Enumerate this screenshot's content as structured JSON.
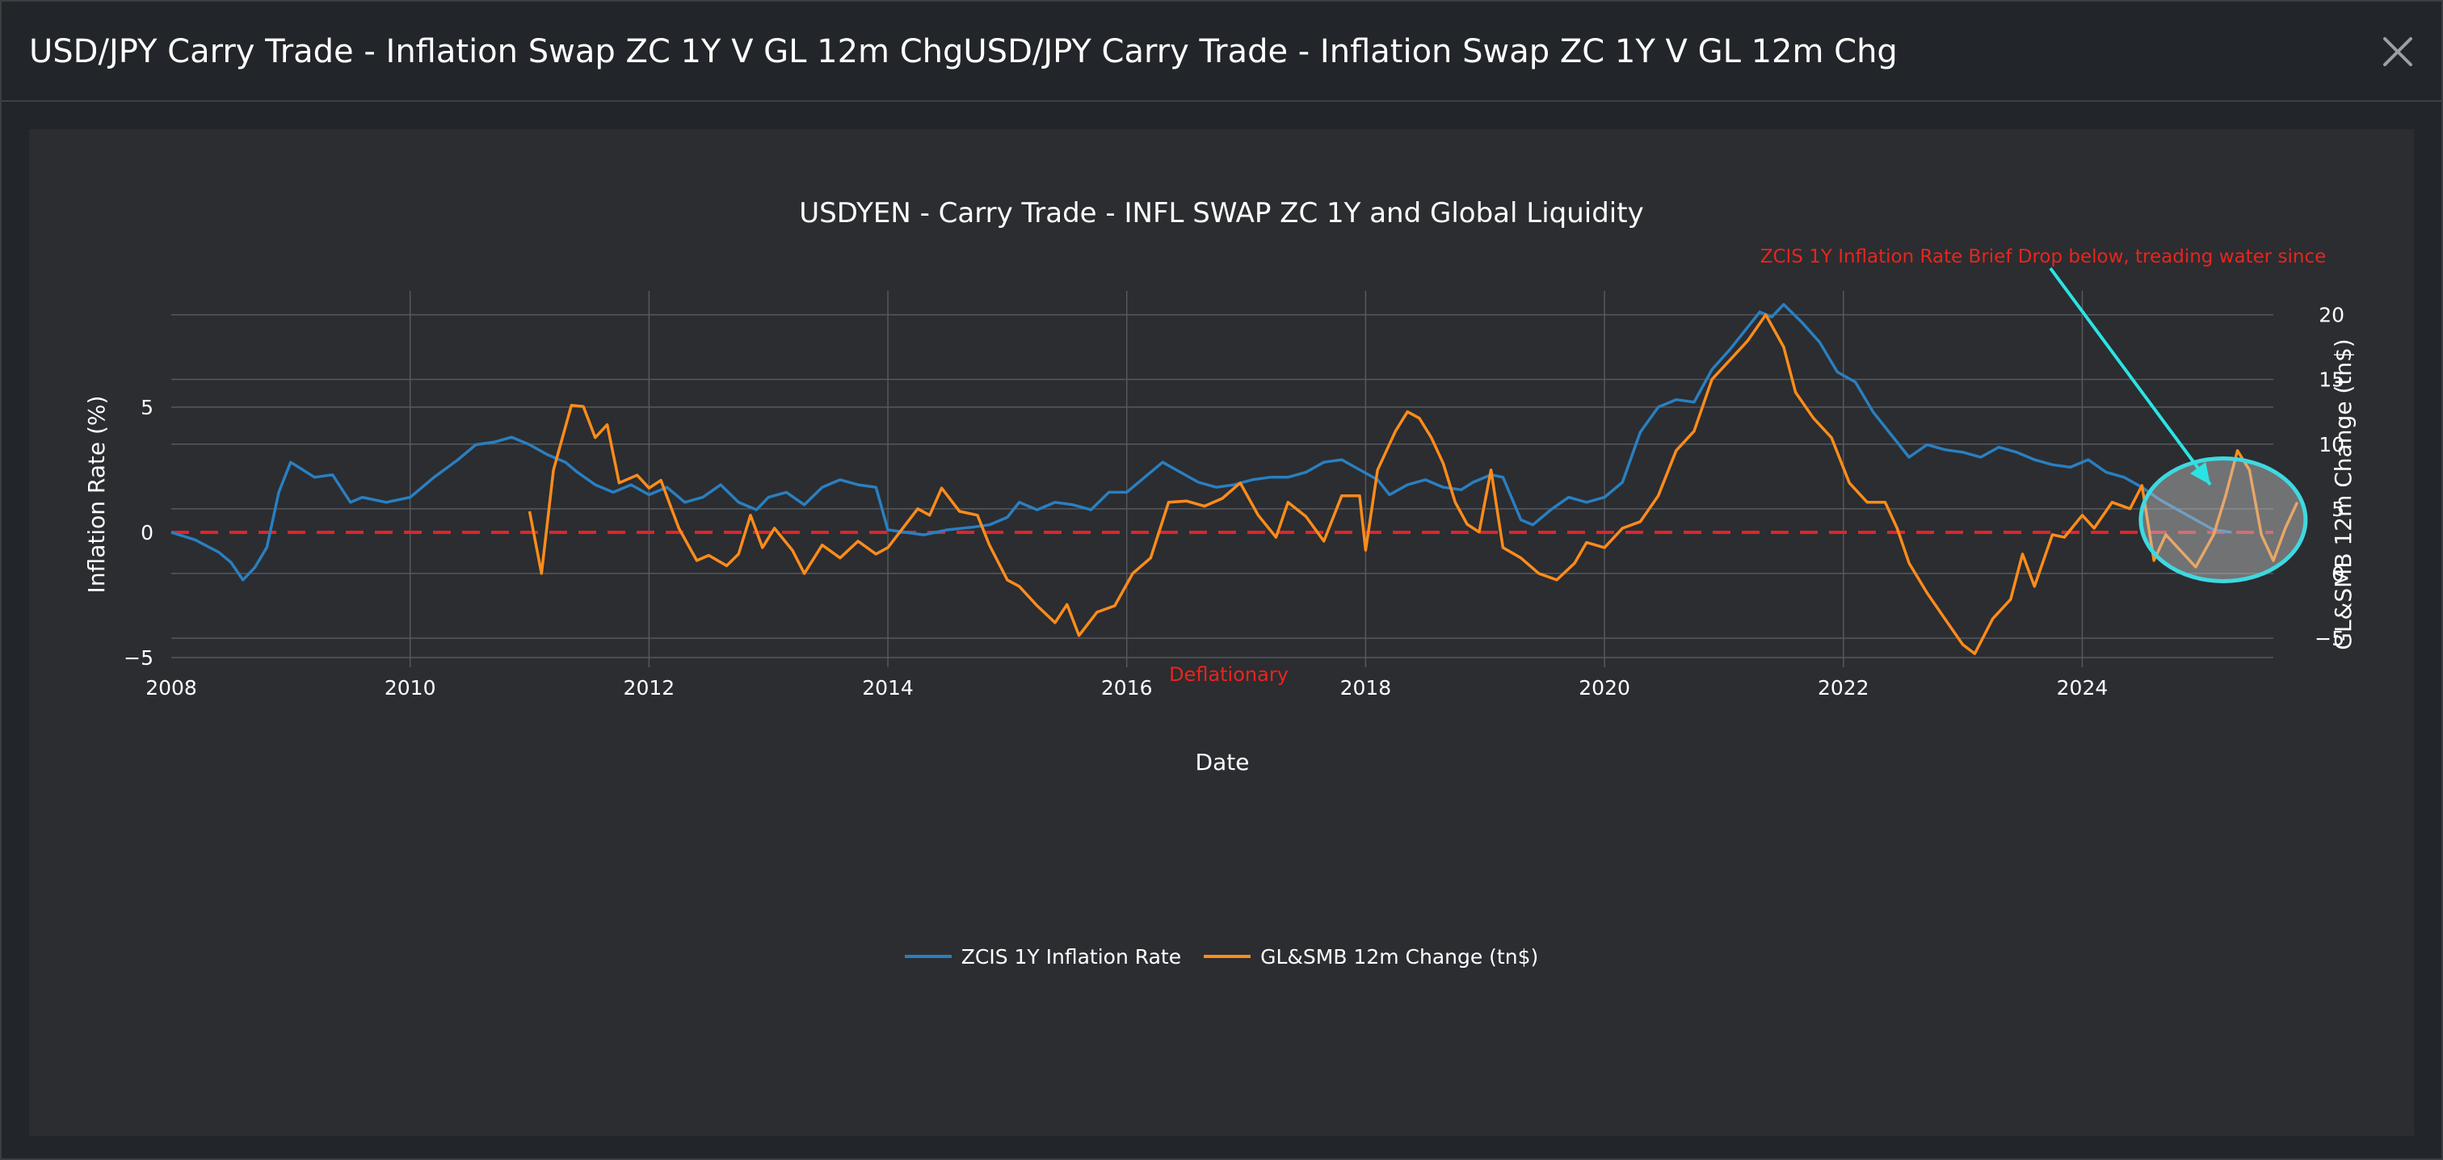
{
  "modal": {
    "title": "USD/JPY Carry Trade - Inflation Swap ZC 1Y V GL 12m ChgUSD/JPY Carry Trade - Inflation Swap ZC 1Y V GL 12m Chg",
    "close_icon": "close-icon"
  },
  "colors": {
    "series1": "#2a7fc0",
    "series2": "#ff8c1a",
    "zero_line": "#e0242b",
    "annotation_red": "#e8251d",
    "arrow": "#2ce3e3",
    "circle": "#3ed9e0"
  },
  "chart_data": {
    "type": "line",
    "title": "USDYEN - Carry Trade - INFL SWAP ZC 1Y and Global Liquidity",
    "xlabel": "Date",
    "ylabel": "Inflation Rate (%)",
    "y2label": "GL&SMB 12m Change (tn$)",
    "xlim": [
      2008,
      2025.6
    ],
    "ylim": [
      -5,
      9
    ],
    "y2lim": [
      -6.5,
      20.6
    ],
    "x_ticks": [
      "2008",
      "2010",
      "2012",
      "2014",
      "2016",
      "2018",
      "2020",
      "2022",
      "2024"
    ],
    "y_ticks": [
      "−5",
      "0",
      "5"
    ],
    "y2_ticks": [
      "−5",
      "0",
      "5",
      "10",
      "15",
      "20"
    ],
    "grid": true,
    "legend_position": "bottom-center",
    "zero_line": 0,
    "series": [
      {
        "name": "ZCIS 1Y Inflation Rate",
        "axis": "y",
        "points": [
          [
            2008.0,
            0.0
          ],
          [
            2008.2,
            -0.3
          ],
          [
            2008.4,
            -0.8
          ],
          [
            2008.5,
            -1.2
          ],
          [
            2008.6,
            -1.9
          ],
          [
            2008.7,
            -1.4
          ],
          [
            2008.8,
            -0.6
          ],
          [
            2008.9,
            1.6
          ],
          [
            2009.0,
            2.8
          ],
          [
            2009.1,
            2.5
          ],
          [
            2009.2,
            2.2
          ],
          [
            2009.35,
            2.3
          ],
          [
            2009.5,
            1.2
          ],
          [
            2009.6,
            1.4
          ],
          [
            2009.8,
            1.2
          ],
          [
            2010.0,
            1.4
          ],
          [
            2010.2,
            2.2
          ],
          [
            2010.4,
            2.9
          ],
          [
            2010.55,
            3.5
          ],
          [
            2010.7,
            3.6
          ],
          [
            2010.85,
            3.8
          ],
          [
            2011.0,
            3.5
          ],
          [
            2011.15,
            3.1
          ],
          [
            2011.3,
            2.8
          ],
          [
            2011.4,
            2.4
          ],
          [
            2011.55,
            1.9
          ],
          [
            2011.7,
            1.6
          ],
          [
            2011.85,
            1.9
          ],
          [
            2012.0,
            1.5
          ],
          [
            2012.15,
            1.8
          ],
          [
            2012.3,
            1.2
          ],
          [
            2012.45,
            1.4
          ],
          [
            2012.6,
            1.9
          ],
          [
            2012.75,
            1.2
          ],
          [
            2012.9,
            0.9
          ],
          [
            2013.0,
            1.4
          ],
          [
            2013.15,
            1.6
          ],
          [
            2013.3,
            1.1
          ],
          [
            2013.45,
            1.8
          ],
          [
            2013.6,
            2.1
          ],
          [
            2013.75,
            1.9
          ],
          [
            2013.9,
            1.8
          ],
          [
            2014.0,
            0.1
          ],
          [
            2014.15,
            0.0
          ],
          [
            2014.3,
            -0.1
          ],
          [
            2014.5,
            0.1
          ],
          [
            2014.7,
            0.2
          ],
          [
            2014.85,
            0.3
          ],
          [
            2015.0,
            0.6
          ],
          [
            2015.1,
            1.2
          ],
          [
            2015.25,
            0.9
          ],
          [
            2015.4,
            1.2
          ],
          [
            2015.55,
            1.1
          ],
          [
            2015.7,
            0.9
          ],
          [
            2015.85,
            1.6
          ],
          [
            2016.0,
            1.6
          ],
          [
            2016.15,
            2.2
          ],
          [
            2016.3,
            2.8
          ],
          [
            2016.45,
            2.4
          ],
          [
            2016.6,
            2.0
          ],
          [
            2016.75,
            1.8
          ],
          [
            2016.9,
            1.9
          ],
          [
            2017.05,
            2.1
          ],
          [
            2017.2,
            2.2
          ],
          [
            2017.35,
            2.2
          ],
          [
            2017.5,
            2.4
          ],
          [
            2017.65,
            2.8
          ],
          [
            2017.8,
            2.9
          ],
          [
            2017.95,
            2.5
          ],
          [
            2018.1,
            2.1
          ],
          [
            2018.2,
            1.5
          ],
          [
            2018.35,
            1.9
          ],
          [
            2018.5,
            2.1
          ],
          [
            2018.65,
            1.8
          ],
          [
            2018.8,
            1.7
          ],
          [
            2018.9,
            2.0
          ],
          [
            2019.05,
            2.3
          ],
          [
            2019.15,
            2.2
          ],
          [
            2019.3,
            0.5
          ],
          [
            2019.4,
            0.3
          ],
          [
            2019.55,
            0.9
          ],
          [
            2019.7,
            1.4
          ],
          [
            2019.85,
            1.2
          ],
          [
            2020.0,
            1.4
          ],
          [
            2020.15,
            2.0
          ],
          [
            2020.3,
            4.0
          ],
          [
            2020.45,
            5.0
          ],
          [
            2020.6,
            5.3
          ],
          [
            2020.75,
            5.2
          ],
          [
            2020.9,
            6.5
          ],
          [
            2021.05,
            7.3
          ],
          [
            2021.2,
            8.2
          ],
          [
            2021.3,
            8.8
          ],
          [
            2021.4,
            8.6
          ],
          [
            2021.5,
            9.1
          ],
          [
            2021.65,
            8.4
          ],
          [
            2021.8,
            7.6
          ],
          [
            2021.95,
            6.4
          ],
          [
            2022.1,
            6.0
          ],
          [
            2022.25,
            4.8
          ],
          [
            2022.4,
            3.9
          ],
          [
            2022.55,
            3.0
          ],
          [
            2022.7,
            3.5
          ],
          [
            2022.85,
            3.3
          ],
          [
            2023.0,
            3.2
          ],
          [
            2023.15,
            3.0
          ],
          [
            2023.3,
            3.4
          ],
          [
            2023.45,
            3.2
          ],
          [
            2023.6,
            2.9
          ],
          [
            2023.75,
            2.7
          ],
          [
            2023.9,
            2.6
          ],
          [
            2024.05,
            2.9
          ],
          [
            2024.2,
            2.4
          ],
          [
            2024.35,
            2.2
          ],
          [
            2024.5,
            1.8
          ],
          [
            2024.65,
            1.3
          ],
          [
            2024.8,
            0.9
          ],
          [
            2024.95,
            0.5
          ],
          [
            2025.1,
            0.1
          ],
          [
            2025.25,
            0.0
          ]
        ]
      },
      {
        "name": "GL&SMB 12m Change (tn$)",
        "axis": "y2",
        "points": [
          [
            2011.0,
            4.8
          ],
          [
            2011.1,
            0.0
          ],
          [
            2011.2,
            8.0
          ],
          [
            2011.35,
            13.0
          ],
          [
            2011.45,
            12.9
          ],
          [
            2011.55,
            10.5
          ],
          [
            2011.65,
            11.5
          ],
          [
            2011.75,
            7.0
          ],
          [
            2011.9,
            7.6
          ],
          [
            2012.0,
            6.6
          ],
          [
            2012.1,
            7.2
          ],
          [
            2012.25,
            3.5
          ],
          [
            2012.4,
            1.0
          ],
          [
            2012.5,
            1.4
          ],
          [
            2012.65,
            0.6
          ],
          [
            2012.75,
            1.5
          ],
          [
            2012.85,
            4.5
          ],
          [
            2012.95,
            2.0
          ],
          [
            2013.05,
            3.5
          ],
          [
            2013.2,
            1.8
          ],
          [
            2013.3,
            0.0
          ],
          [
            2013.45,
            2.2
          ],
          [
            2013.6,
            1.2
          ],
          [
            2013.75,
            2.5
          ],
          [
            2013.9,
            1.5
          ],
          [
            2014.0,
            2.0
          ],
          [
            2014.1,
            3.2
          ],
          [
            2014.25,
            5.0
          ],
          [
            2014.35,
            4.5
          ],
          [
            2014.45,
            6.6
          ],
          [
            2014.6,
            4.8
          ],
          [
            2014.75,
            4.5
          ],
          [
            2014.85,
            2.2
          ],
          [
            2015.0,
            -0.5
          ],
          [
            2015.1,
            -1.0
          ],
          [
            2015.25,
            -2.5
          ],
          [
            2015.4,
            -3.8
          ],
          [
            2015.5,
            -2.4
          ],
          [
            2015.6,
            -4.8
          ],
          [
            2015.75,
            -3.0
          ],
          [
            2015.9,
            -2.5
          ],
          [
            2016.05,
            0.0
          ],
          [
            2016.2,
            1.2
          ],
          [
            2016.35,
            5.5
          ],
          [
            2016.5,
            5.6
          ],
          [
            2016.65,
            5.2
          ],
          [
            2016.8,
            5.8
          ],
          [
            2016.95,
            7.0
          ],
          [
            2017.1,
            4.5
          ],
          [
            2017.25,
            2.8
          ],
          [
            2017.35,
            5.5
          ],
          [
            2017.5,
            4.4
          ],
          [
            2017.65,
            2.5
          ],
          [
            2017.8,
            6.0
          ],
          [
            2017.95,
            6.0
          ],
          [
            2018.0,
            1.8
          ],
          [
            2018.1,
            8.0
          ],
          [
            2018.25,
            11.0
          ],
          [
            2018.35,
            12.5
          ],
          [
            2018.45,
            12.0
          ],
          [
            2018.55,
            10.5
          ],
          [
            2018.65,
            8.5
          ],
          [
            2018.75,
            5.5
          ],
          [
            2018.85,
            3.8
          ],
          [
            2018.95,
            3.2
          ],
          [
            2019.05,
            8.0
          ],
          [
            2019.15,
            2.0
          ],
          [
            2019.3,
            1.2
          ],
          [
            2019.45,
            0.0
          ],
          [
            2019.6,
            -0.5
          ],
          [
            2019.75,
            0.8
          ],
          [
            2019.85,
            2.4
          ],
          [
            2020.0,
            2.0
          ],
          [
            2020.15,
            3.5
          ],
          [
            2020.3,
            4.0
          ],
          [
            2020.45,
            6.0
          ],
          [
            2020.6,
            9.5
          ],
          [
            2020.75,
            11.0
          ],
          [
            2020.9,
            15.0
          ],
          [
            2021.05,
            16.5
          ],
          [
            2021.2,
            18.0
          ],
          [
            2021.35,
            20.0
          ],
          [
            2021.5,
            17.5
          ],
          [
            2021.6,
            14.0
          ],
          [
            2021.75,
            12.0
          ],
          [
            2021.9,
            10.5
          ],
          [
            2022.05,
            7.0
          ],
          [
            2022.2,
            5.5
          ],
          [
            2022.35,
            5.5
          ],
          [
            2022.45,
            3.5
          ],
          [
            2022.55,
            0.8
          ],
          [
            2022.7,
            -1.5
          ],
          [
            2022.85,
            -3.5
          ],
          [
            2023.0,
            -5.5
          ],
          [
            2023.1,
            -6.2
          ],
          [
            2023.25,
            -3.5
          ],
          [
            2023.4,
            -2.0
          ],
          [
            2023.5,
            1.5
          ],
          [
            2023.6,
            -1.0
          ],
          [
            2023.75,
            3.0
          ],
          [
            2023.85,
            2.8
          ],
          [
            2024.0,
            4.5
          ],
          [
            2024.1,
            3.5
          ],
          [
            2024.25,
            5.5
          ],
          [
            2024.4,
            5.0
          ],
          [
            2024.5,
            6.8
          ],
          [
            2024.6,
            1.0
          ],
          [
            2024.7,
            3.0
          ],
          [
            2024.8,
            2.0
          ],
          [
            2024.95,
            0.5
          ],
          [
            2025.1,
            3.0
          ],
          [
            2025.2,
            6.0
          ],
          [
            2025.3,
            9.5
          ],
          [
            2025.4,
            8.0
          ],
          [
            2025.5,
            3.0
          ],
          [
            2025.6,
            1.0
          ],
          [
            2025.7,
            3.5
          ],
          [
            2025.8,
            5.5
          ]
        ]
      }
    ],
    "annotations": [
      {
        "text": "ZCIS 1Y Inflation Rate Brief Drop below, treading water since"
      },
      {
        "text": "Deflationary"
      }
    ]
  }
}
